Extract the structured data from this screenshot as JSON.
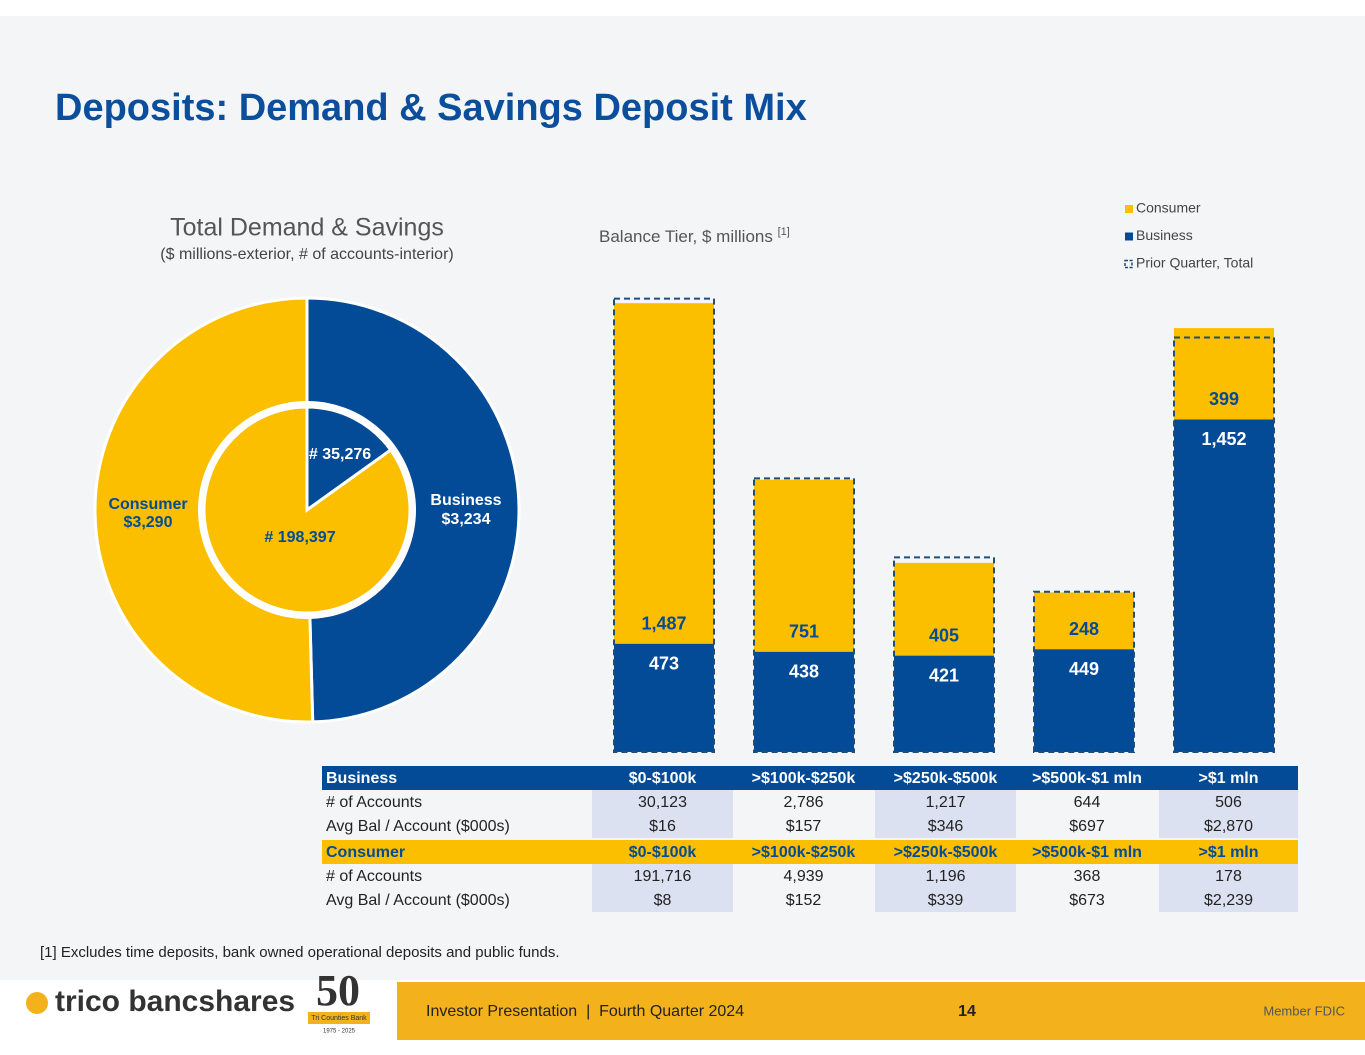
{
  "title": "Deposits: Demand & Savings Deposit Mix",
  "chart_data": [
    {
      "type": "donut",
      "title": "Total Demand & Savings",
      "subtitle": "($ millions-exterior, # of accounts-interior)",
      "categories": [
        "Consumer",
        "Business"
      ],
      "colors": [
        "#fbbf00",
        "#034b96"
      ],
      "values": [
        3290,
        3234
      ],
      "value_labels": [
        "$3,290",
        "$3,234"
      ],
      "inner_values": [
        198397,
        35276
      ],
      "inner_value_labels": [
        "# 198,397",
        "# 35,276"
      ]
    },
    {
      "type": "stacked-bar",
      "title": "Balance Tier, $ millions",
      "title_note": "[1]",
      "series": [
        {
          "name": "Business",
          "color": "#034b96",
          "values": [
            473,
            438,
            421,
            449,
            1452
          ],
          "value_labels": [
            "473",
            "438",
            "421",
            "449",
            "1,452"
          ]
        },
        {
          "name": "Consumer",
          "color": "#fbbf00",
          "values": [
            1487,
            751,
            405,
            248,
            399
          ],
          "value_labels": [
            "1,487",
            "751",
            "405",
            "248",
            "399"
          ]
        },
        {
          "name": "Prior Quarter, Total",
          "color": "#1f4e79",
          "values": [
            1980,
            1195,
            850,
            700,
            1810
          ]
        }
      ]
    }
  ],
  "table": {
    "sections": [
      {
        "header": [
          "Business",
          "$0-$100k",
          ">$100k-$250k",
          ">$250k-$500k",
          ">$500k-$1 mln",
          ">$1 mln"
        ],
        "rows": [
          [
            "# of Accounts",
            "30,123",
            "2,786",
            "1,217",
            "644",
            "506"
          ],
          [
            "Avg Bal / Account ($000s)",
            "$16",
            "$157",
            "$346",
            "$697",
            "$2,870"
          ]
        ]
      },
      {
        "header": [
          "Consumer",
          "$0-$100k",
          ">$100k-$250k",
          ">$250k-$500k",
          ">$500k-$1 mln",
          ">$1 mln"
        ],
        "rows": [
          [
            "# of Accounts",
            "191,716",
            "4,939",
            "1,196",
            "368",
            "178"
          ],
          [
            "Avg Bal / Account ($000s)",
            "$8",
            "$152",
            "$339",
            "$673",
            "$2,239"
          ]
        ]
      }
    ]
  },
  "footnote": "[1] Excludes time deposits, bank owned operational deposits and public funds.",
  "footer": {
    "logo": "trico bancshares",
    "badge": "50",
    "badge_text": "Tri Counties Bank",
    "badge_years": "1975 - 2025",
    "presentation": "Investor Presentation  |  Fourth Quarter 2024",
    "page": "14",
    "member": "Member FDIC"
  }
}
